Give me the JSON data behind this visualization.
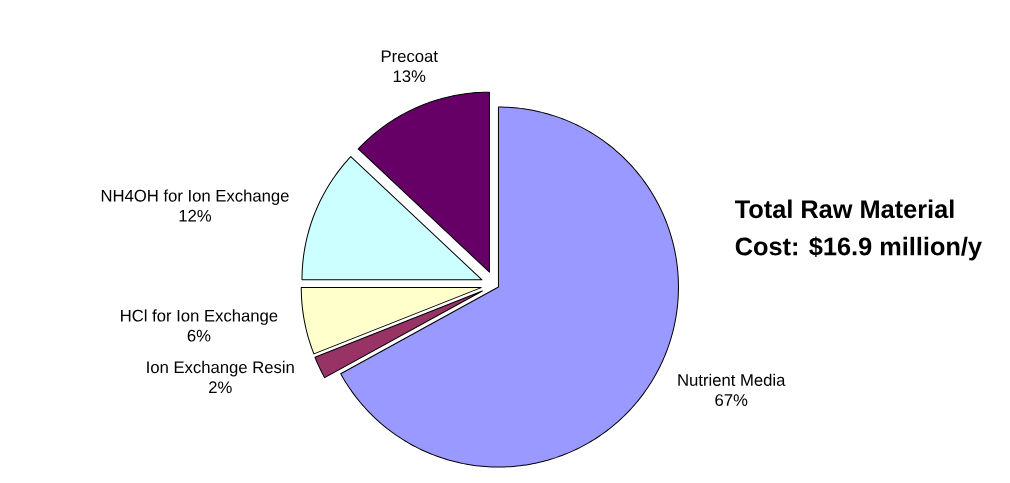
{
  "chart_data": {
    "type": "pie",
    "categories": [
      "Nutrient Media",
      "Ion Exchange Resin",
      "HCl for Ion Exchange",
      "NH4OH for Ion Exchange",
      "Precoat"
    ],
    "values": [
      67,
      2,
      6,
      12,
      13
    ],
    "value_labels": [
      "67%",
      "2%",
      "6%",
      "12%",
      "13%"
    ],
    "colors": [
      "#9999ff",
      "#993366",
      "#ffffcc",
      "#ccffff",
      "#660066"
    ],
    "annotations": [
      "Total Raw Material Cost: $16.9 million/y"
    ]
  }
}
